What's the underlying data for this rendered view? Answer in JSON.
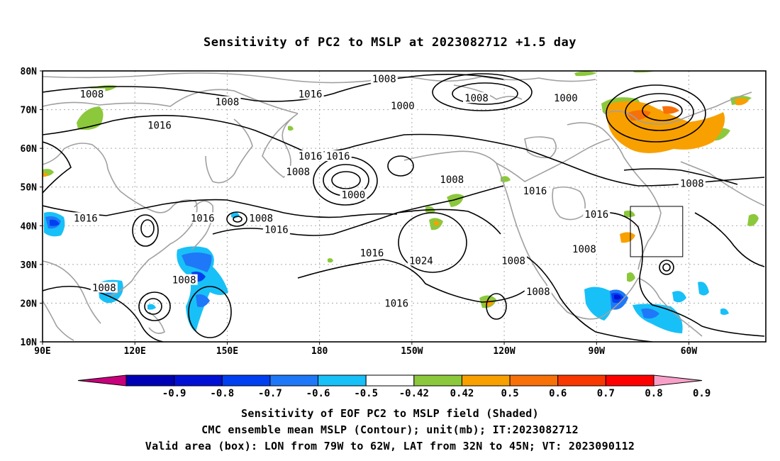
{
  "title": "Sensitivity of PC2 to MSLP at 2023082712 +1.5 day",
  "map": {
    "lat_labels": [
      "80N",
      "70N",
      "60N",
      "50N",
      "40N",
      "30N",
      "20N",
      "10N"
    ],
    "lon_labels": [
      "90E",
      "120E",
      "150E",
      "180",
      "150W",
      "120W",
      "90W",
      "60W"
    ],
    "extent": {
      "lon_min": 90,
      "lon_max": 325,
      "lat_min": 10,
      "lat_max": 80
    },
    "valid_box": {
      "lon_west": -79,
      "lon_east": -62,
      "lat_south": 32,
      "lat_north": 45
    },
    "contour_labels": [
      {
        "text": "1008",
        "lon": 106,
        "lat": 74
      },
      {
        "text": "1008",
        "lon": 150,
        "lat": 72
      },
      {
        "text": "1016",
        "lon": 128,
        "lat": 66
      },
      {
        "text": "1016",
        "lon": 177,
        "lat": 74
      },
      {
        "text": "1008",
        "lon": 201,
        "lat": 78
      },
      {
        "text": "1000",
        "lon": 207,
        "lat": 71
      },
      {
        "text": "1008",
        "lon": 231,
        "lat": 73
      },
      {
        "text": "1000",
        "lon": 260,
        "lat": 73
      },
      {
        "text": "1016",
        "lon": 177,
        "lat": 58
      },
      {
        "text": "1016",
        "lon": 186,
        "lat": 58
      },
      {
        "text": "1008",
        "lon": 173,
        "lat": 54
      },
      {
        "text": "1008",
        "lon": 223,
        "lat": 52
      },
      {
        "text": "1000",
        "lon": 191,
        "lat": 48
      },
      {
        "text": "1016",
        "lon": 250,
        "lat": 49
      },
      {
        "text": "1008",
        "lon": 301,
        "lat": 51
      },
      {
        "text": "1016",
        "lon": 104,
        "lat": 42
      },
      {
        "text": "1016",
        "lon": 142,
        "lat": 42
      },
      {
        "text": "1008",
        "lon": 161,
        "lat": 42
      },
      {
        "text": "1016",
        "lon": 166,
        "lat": 39
      },
      {
        "text": "1016",
        "lon": 270,
        "lat": 43
      },
      {
        "text": "1016",
        "lon": 197,
        "lat": 33
      },
      {
        "text": "1024",
        "lon": 213,
        "lat": 31
      },
      {
        "text": "1008",
        "lon": 243,
        "lat": 31
      },
      {
        "text": "1008",
        "lon": 266,
        "lat": 34
      },
      {
        "text": "1008",
        "lon": 110,
        "lat": 24
      },
      {
        "text": "1008",
        "lon": 136,
        "lat": 26
      },
      {
        "text": "1008",
        "lon": 251,
        "lat": 23
      },
      {
        "text": "1016",
        "lon": 205,
        "lat": 20
      }
    ]
  },
  "colorbar": {
    "labels": [
      "-0.9",
      "-0.8",
      "-0.7",
      "-0.6",
      "-0.5",
      "-0.42",
      "0.42",
      "0.5",
      "0.6",
      "0.7",
      "0.8",
      "0.9"
    ],
    "colors": [
      "#c8007c",
      "#0000b4",
      "#0010d4",
      "#0040f0",
      "#1f78f8",
      "#18c0f8",
      "#ffffff",
      "#8cc83c",
      "#f8a000",
      "#f87008",
      "#f83800",
      "#ff0000",
      "#f8a0c8"
    ]
  },
  "footer": {
    "line1": "Sensitivity of EOF PC2 to MSLP field (Shaded)",
    "line2": "CMC ensemble mean MSLP (Contour); unit(mb); IT:2023082712",
    "line3": "Valid area (box): LON from 79W to 62W, LAT from 32N to 45N; VT: 2023090112"
  }
}
